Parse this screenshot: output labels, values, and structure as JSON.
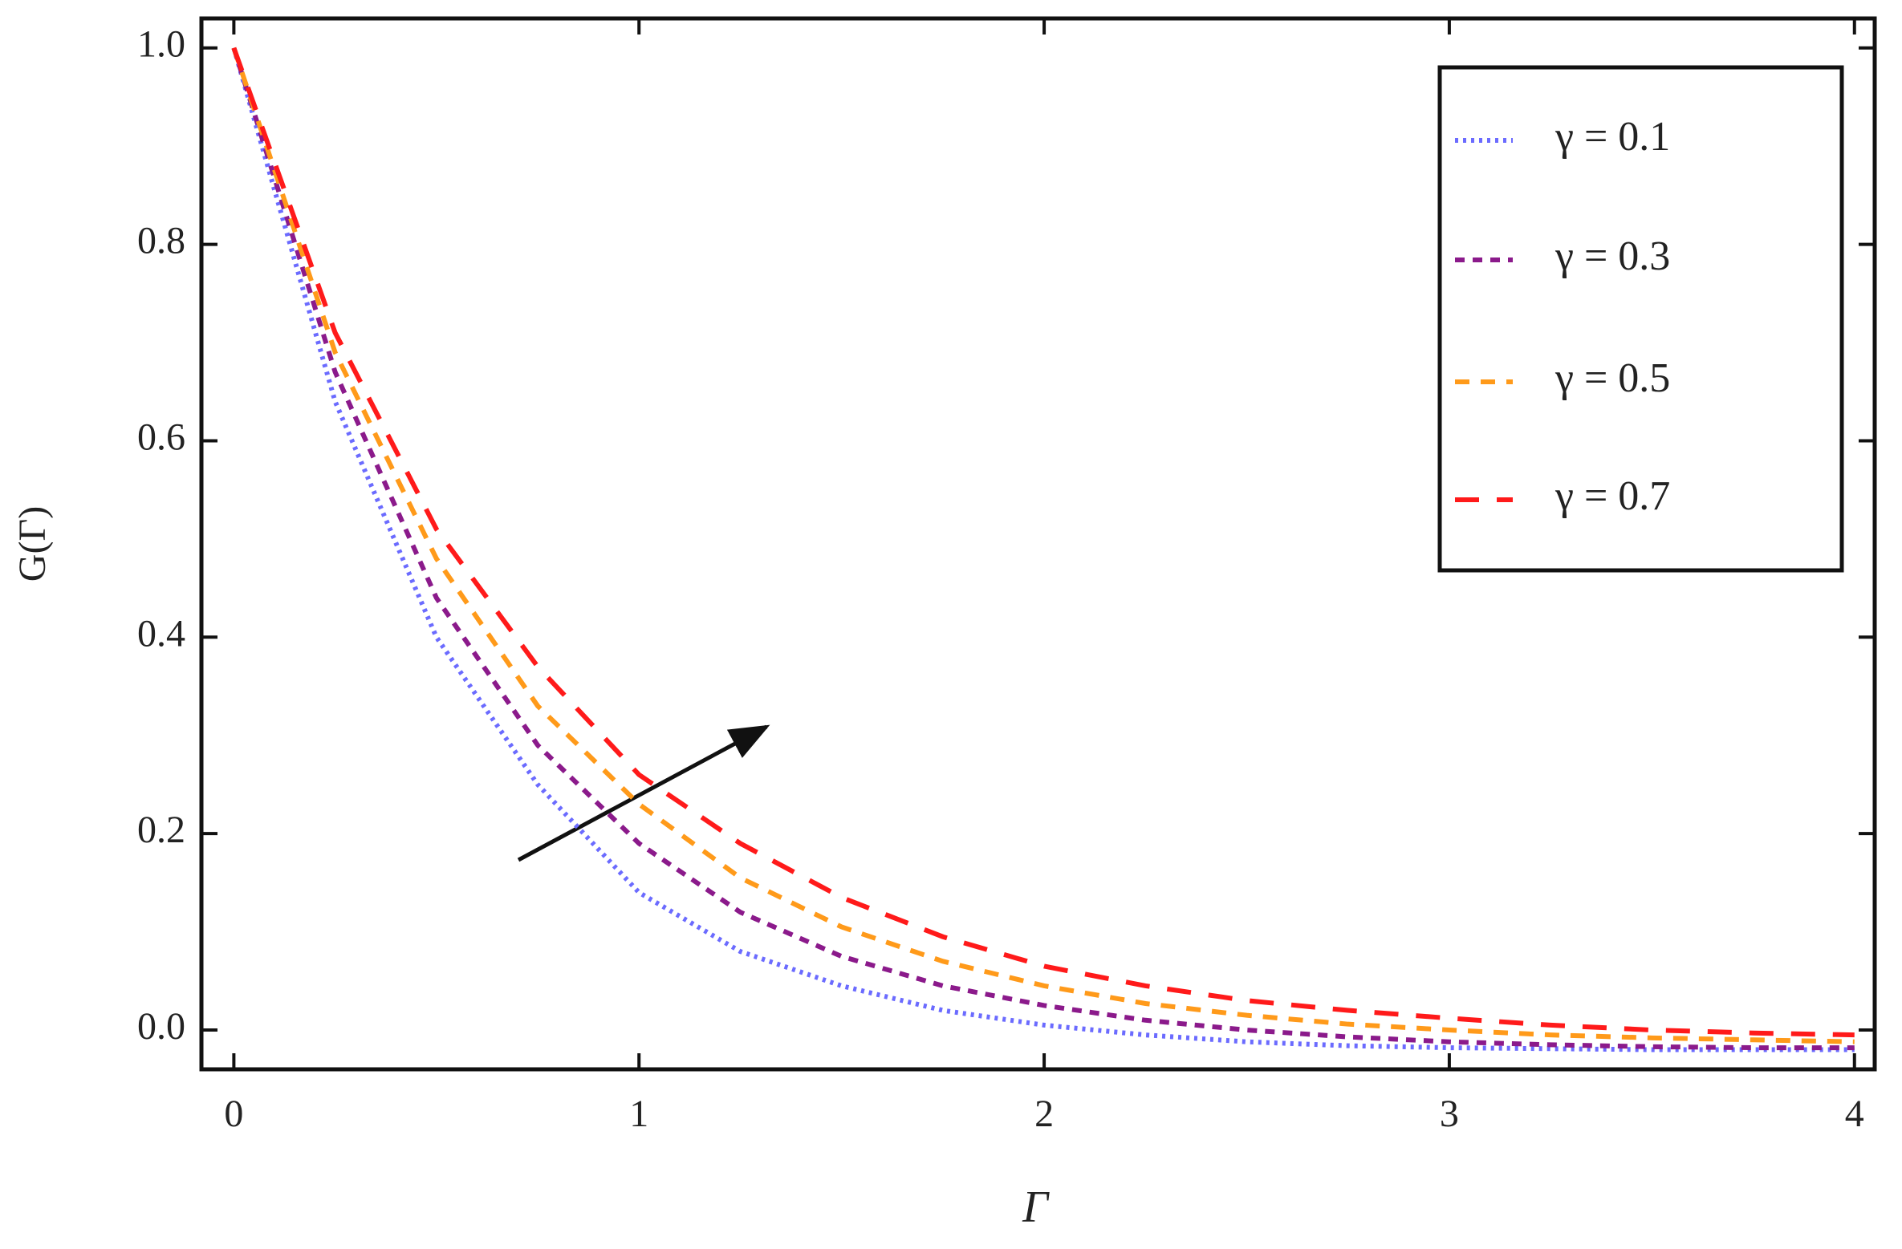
{
  "chart_data": {
    "type": "line",
    "xlabel": "Γ",
    "ylabel": "G(Γ)",
    "x": [
      0,
      0.25,
      0.5,
      0.75,
      1,
      1.25,
      1.5,
      1.75,
      2,
      2.25,
      2.5,
      2.75,
      3,
      3.25,
      3.5,
      3.75,
      4
    ],
    "series": [
      {
        "name": "γ = 0.1",
        "color": "#6b6bff",
        "dash": "4 6",
        "values": [
          1,
          0.64,
          0.4,
          0.25,
          0.14,
          0.08,
          0.045,
          0.02,
          0.005,
          -0.005,
          -0.012,
          -0.016,
          -0.018,
          -0.019,
          -0.02,
          -0.02,
          -0.02
        ]
      },
      {
        "name": "γ = 0.3",
        "color": "#8b1a8b",
        "dash": "12 10",
        "values": [
          1,
          0.67,
          0.44,
          0.29,
          0.19,
          0.12,
          0.075,
          0.045,
          0.025,
          0.01,
          0,
          -0.007,
          -0.012,
          -0.015,
          -0.017,
          -0.018,
          -0.018
        ]
      },
      {
        "name": "γ = 0.5",
        "color": "#ff9a1a",
        "dash": "18 14",
        "values": [
          1,
          0.69,
          0.48,
          0.33,
          0.23,
          0.155,
          0.105,
          0.07,
          0.045,
          0.027,
          0.015,
          0.006,
          0,
          -0.005,
          -0.008,
          -0.01,
          -0.012
        ]
      },
      {
        "name": "γ = 0.7",
        "color": "#ff1a1a",
        "dash": "30 22",
        "values": [
          1,
          0.71,
          0.51,
          0.37,
          0.26,
          0.19,
          0.135,
          0.095,
          0.065,
          0.045,
          0.03,
          0.02,
          0.012,
          0.005,
          0,
          -0.003,
          -0.005
        ]
      }
    ],
    "xlim": [
      -0.08,
      4.05
    ],
    "ylim": [
      -0.04,
      1.03
    ],
    "xticks": [
      0,
      1,
      2,
      3,
      4
    ],
    "yticks": [
      {
        "value": 0,
        "label": "0.0"
      },
      {
        "value": 0.2,
        "label": "0.2"
      },
      {
        "value": 0.4,
        "label": "0.4"
      },
      {
        "value": 0.6,
        "label": "0.6"
      },
      {
        "value": 0.8,
        "label": "0.8"
      },
      {
        "value": 1,
        "label": "1.0"
      }
    ],
    "legend": "upper right"
  }
}
